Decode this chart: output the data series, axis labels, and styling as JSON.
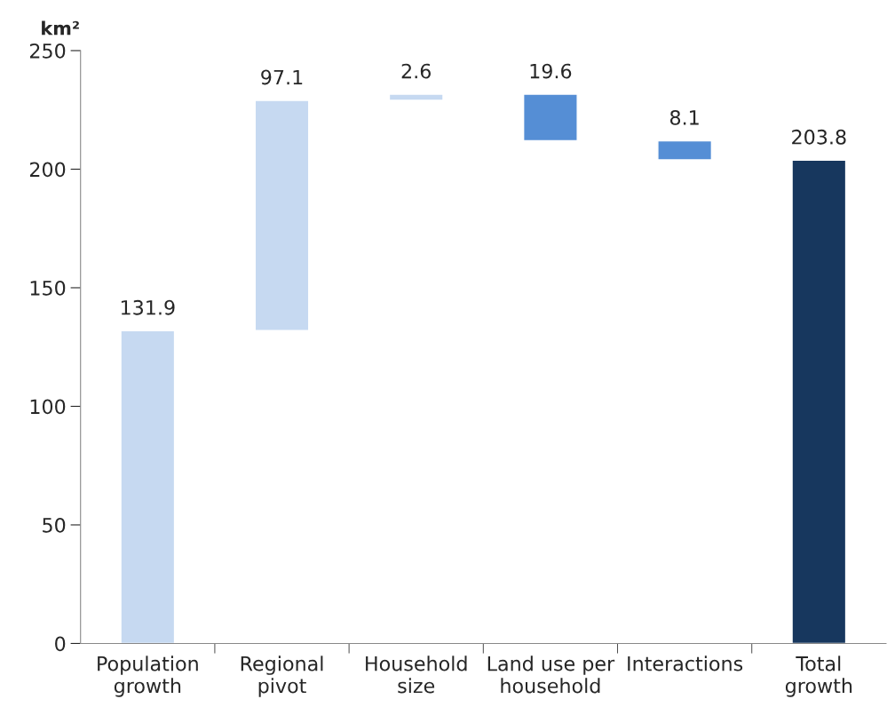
{
  "chart_data": {
    "type": "bar",
    "ylabel": "km²",
    "categories": [
      "Population\ngrowth",
      "Regional\npivot",
      "Household\nsize",
      "Land use per\nhousehold",
      "Interactions",
      "Total\ngrowth"
    ],
    "values": [
      131.9,
      97.1,
      2.6,
      -19.6,
      -8.1,
      203.8
    ],
    "base": [
      0,
      131.9,
      229.0,
      231.6,
      212.0,
      0
    ],
    "colors": [
      "#c6d9f1",
      "#c6d9f1",
      "#c6d9f1",
      "#558ed5",
      "#558ed5",
      "#17375e"
    ],
    "value_labels": [
      "131.9",
      "97.1",
      "2.6",
      "19.6",
      "8.1",
      "203.8"
    ],
    "ylim": [
      0,
      250
    ],
    "yticks": [
      0,
      50,
      100,
      150,
      200,
      250
    ],
    "grid": false,
    "legend": false
  }
}
